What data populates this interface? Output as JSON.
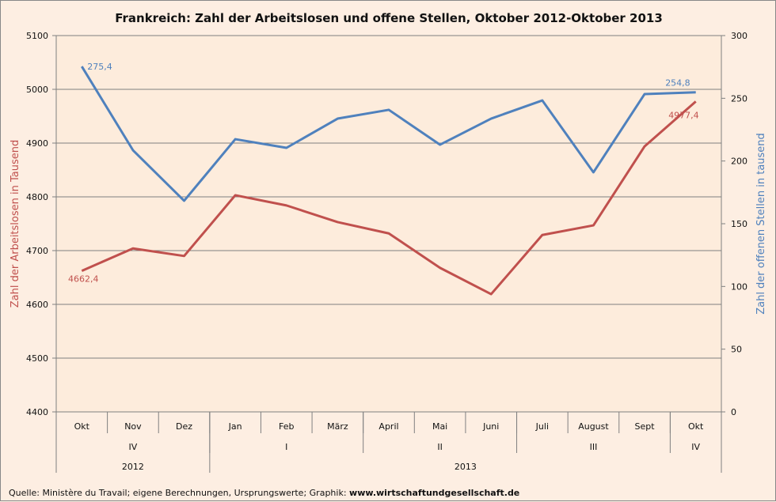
{
  "chart_data": {
    "type": "line",
    "title": "Frankreich: Zahl der Arbeitslosen und offene Stellen, Oktober 2012-Oktober 2013",
    "categories": [
      "Okt",
      "Nov",
      "Dez",
      "Jan",
      "Feb",
      "März",
      "April",
      "Mai",
      "Juni",
      "Juli",
      "August",
      "Sept",
      "Okt"
    ],
    "quarters": [
      {
        "label": "IV",
        "span": 3
      },
      {
        "label": "I",
        "span": 3
      },
      {
        "label": "II",
        "span": 3
      },
      {
        "label": "III",
        "span": 3
      },
      {
        "label": "IV",
        "span": 1
      }
    ],
    "years": [
      {
        "label": "2012",
        "span": 3
      },
      {
        "label": "2013",
        "span": 10
      }
    ],
    "ylabel_left": "Zahl der Arbeitslosen in Tausend",
    "ylabel_right": "Zahl der offenen Stellen in tausend",
    "ylim_left": [
      4400,
      5100
    ],
    "yticks_left": [
      4400,
      4500,
      4600,
      4700,
      4800,
      4900,
      5000,
      5100
    ],
    "ylim_right": [
      0,
      300
    ],
    "yticks_right": [
      0,
      50,
      100,
      150,
      200,
      250,
      300
    ],
    "grid": true,
    "series": [
      {
        "name": "Arbeitslose",
        "axis": "left",
        "color": "#c0504d",
        "values": [
          4662.4,
          4704,
          4690,
          4803,
          4784,
          4753,
          4732,
          4668,
          4619,
          4729,
          4747,
          4894,
          4977.4
        ],
        "labels": {
          "0": "4662,4",
          "12": "4977,4"
        }
      },
      {
        "name": "Offene Stellen",
        "axis": "right",
        "color": "#4f81bd",
        "values": [
          275.4,
          208.6,
          168.3,
          217.4,
          210.5,
          233.8,
          240.8,
          213,
          233.8,
          248.3,
          191,
          253.4,
          254.8
        ],
        "labels": {
          "0": "275,4",
          "12": "254,8"
        }
      }
    ]
  },
  "source": {
    "text": "Quelle: Ministère du Travail;  eigene Berechnungen, Ursprungswerte; Graphik: ",
    "link": "www.wirtschaftundgesellschaft.de"
  }
}
